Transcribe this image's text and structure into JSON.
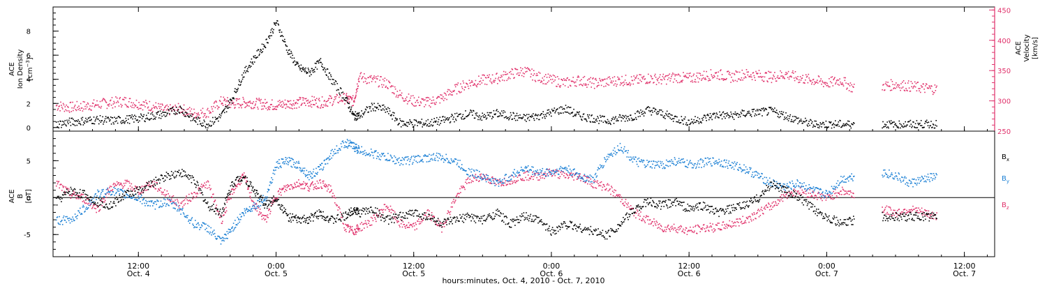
{
  "colors": {
    "axes": "#000000",
    "density": "#000000",
    "velocity": "#e0306a",
    "bx": "#000000",
    "by": "#1a7fd4",
    "bz": "#e0306a"
  },
  "footer_label": "hours:minutes, Oct.  4, 2010 - Oct.  7, 2010",
  "time_ticks": [
    {
      "t": 4.5,
      "time": "12:00",
      "date": "Oct. 4"
    },
    {
      "t": 5.0,
      "time": "0:00",
      "date": "Oct. 5"
    },
    {
      "t": 5.5,
      "time": "12:00",
      "date": "Oct. 5"
    },
    {
      "t": 6.0,
      "time": "0:00",
      "date": "Oct. 6"
    },
    {
      "t": 6.5,
      "time": "12:00",
      "date": "Oct. 6"
    },
    {
      "t": 7.0,
      "time": "0:00",
      "date": "Oct. 7"
    },
    {
      "t": 7.5,
      "time": "12:00",
      "date": "Oct. 7"
    }
  ],
  "chart_data": [
    {
      "type": "scatter",
      "panel": "top",
      "x_unit": "day of October 2010",
      "xlim": [
        4.19,
        7.61
      ],
      "left_axis": {
        "label_line1": "ACE",
        "label_line2": "Ion Density",
        "unit_text": "[cm",
        "unit_sup": "−3",
        "unit_end": "]",
        "ylim": [
          -0.3,
          10
        ],
        "ticks": [
          0,
          2,
          4,
          6,
          8
        ]
      },
      "right_axis": {
        "label_line1": "ACE",
        "label_line2": "Velocity",
        "unit_text": "[km/s]",
        "ylim": [
          250,
          455
        ],
        "ticks": [
          250,
          300,
          350,
          400,
          450
        ]
      },
      "series": [
        {
          "axis": "left",
          "x": [
            4.2,
            4.25,
            4.3,
            4.35,
            4.4,
            4.45,
            4.5,
            4.55,
            4.6,
            4.65,
            4.7,
            4.75,
            4.8,
            4.84,
            4.88,
            4.92,
            4.96,
            5.0,
            5.04,
            5.08,
            5.12,
            5.16,
            5.2,
            5.25,
            5.28,
            5.3,
            5.35,
            5.4,
            5.45,
            5.5,
            5.55,
            5.6,
            5.65,
            5.7,
            5.75,
            5.8,
            5.85,
            5.9,
            5.95,
            6.0,
            6.05,
            6.1,
            6.15,
            6.2,
            6.25,
            6.3,
            6.35,
            6.4,
            6.45,
            6.5,
            6.55,
            6.6,
            6.65,
            6.7,
            6.75,
            6.8,
            6.85,
            6.9,
            6.95,
            7.0,
            7.05,
            7.1,
            7.15,
            7.2,
            7.25,
            7.3,
            7.35,
            7.4
          ],
          "y": [
            0.3,
            0.5,
            0.6,
            0.7,
            0.6,
            0.7,
            0.8,
            1.0,
            1.2,
            1.6,
            0.7,
            0.3,
            1.0,
            2.5,
            4.5,
            5.8,
            7.0,
            8.8,
            6.5,
            5.0,
            4.6,
            5.5,
            4.0,
            2.5,
            1.0,
            1.0,
            1.8,
            1.5,
            0.4,
            0.4,
            0.4,
            0.6,
            0.9,
            1.2,
            0.9,
            1.2,
            1.0,
            0.8,
            1.0,
            1.3,
            1.6,
            1.0,
            0.8,
            0.6,
            0.8,
            1.0,
            1.5,
            1.2,
            0.8,
            0.5,
            0.8,
            1.1,
            1.0,
            1.2,
            1.3,
            1.4,
            1.0,
            0.6,
            0.3,
            0.3,
            0.3,
            0.3,
            null,
            0.3,
            0.3,
            0.3,
            0.3,
            0.3
          ]
        },
        {
          "axis": "right",
          "x": [
            4.2,
            4.25,
            4.3,
            4.35,
            4.4,
            4.45,
            4.5,
            4.55,
            4.6,
            4.65,
            4.7,
            4.75,
            4.8,
            4.84,
            4.88,
            4.92,
            4.96,
            5.0,
            5.04,
            5.08,
            5.12,
            5.16,
            5.2,
            5.25,
            5.28,
            5.3,
            5.35,
            5.4,
            5.45,
            5.5,
            5.55,
            5.6,
            5.65,
            5.7,
            5.75,
            5.8,
            5.85,
            5.9,
            5.95,
            6.0,
            6.05,
            6.1,
            6.15,
            6.2,
            6.25,
            6.3,
            6.35,
            6.4,
            6.45,
            6.5,
            6.55,
            6.6,
            6.65,
            6.7,
            6.75,
            6.8,
            6.85,
            6.9,
            6.95,
            7.0,
            7.05,
            7.1,
            7.15,
            7.2,
            7.25,
            7.3,
            7.35,
            7.4
          ],
          "y": [
            293,
            290,
            292,
            295,
            298,
            300,
            296,
            292,
            285,
            288,
            280,
            282,
            300,
            296,
            298,
            297,
            295,
            294,
            296,
            298,
            300,
            298,
            302,
            305,
            300,
            340,
            335,
            330,
            310,
            300,
            298,
            305,
            320,
            330,
            335,
            338,
            345,
            350,
            340,
            335,
            330,
            335,
            330,
            332,
            335,
            334,
            338,
            336,
            340,
            338,
            342,
            345,
            340,
            345,
            343,
            340,
            345,
            338,
            335,
            330,
            335,
            320,
            null,
            325,
            328,
            325,
            322,
            320
          ]
        }
      ]
    },
    {
      "type": "scatter",
      "panel": "bottom",
      "x_unit": "day of October 2010",
      "xlim": [
        4.19,
        7.61
      ],
      "left_axis": {
        "label_line1": "ACE",
        "label_line2": "B",
        "unit_text": "[nT]",
        "ylim": [
          -8,
          9
        ],
        "ticks": [
          -5,
          0,
          5
        ]
      },
      "legend": [
        "B",
        "B",
        "B"
      ],
      "legend_subscripts": [
        "x",
        "y",
        "z"
      ],
      "series": [
        {
          "name": "B",
          "subscript": "x",
          "x": [
            4.2,
            4.25,
            4.3,
            4.35,
            4.4,
            4.45,
            4.5,
            4.55,
            4.6,
            4.65,
            4.7,
            4.75,
            4.8,
            4.84,
            4.88,
            4.92,
            4.96,
            5.0,
            5.04,
            5.08,
            5.12,
            5.16,
            5.2,
            5.25,
            5.28,
            5.3,
            5.35,
            5.4,
            5.45,
            5.5,
            5.55,
            5.6,
            5.65,
            5.7,
            5.75,
            5.8,
            5.85,
            5.9,
            5.95,
            6.0,
            6.05,
            6.1,
            6.15,
            6.2,
            6.25,
            6.3,
            6.35,
            6.4,
            6.45,
            6.5,
            6.55,
            6.6,
            6.65,
            6.7,
            6.75,
            6.8,
            6.85,
            6.9,
            6.95,
            7.0,
            7.05,
            7.1,
            7.15,
            7.2,
            7.25,
            7.3,
            7.35,
            7.4
          ],
          "y": [
            -0.5,
            1.0,
            0.5,
            -0.5,
            -1.0,
            0.5,
            1.0,
            2.0,
            3.0,
            3.5,
            2.5,
            -1.0,
            -2.0,
            2.0,
            3.0,
            1.0,
            -1.0,
            0.0,
            -2.5,
            -3.0,
            -2.8,
            -2.0,
            -3.0,
            -2.5,
            -1.5,
            -2.0,
            -1.5,
            -3.0,
            -2.5,
            -2.0,
            -2.5,
            -3.5,
            -3.0,
            -2.5,
            -3.0,
            -2.0,
            -3.5,
            -2.5,
            -3.0,
            -4.5,
            -3.5,
            -4.0,
            -4.5,
            -5.0,
            -3.5,
            -1.5,
            -0.5,
            -1.0,
            -0.5,
            -1.5,
            -1.0,
            -2.0,
            -1.5,
            -1.0,
            0.0,
            2.0,
            1.0,
            0.0,
            -1.5,
            -2.5,
            -3.5,
            -3.0,
            null,
            -2.5,
            -2.5,
            -2.5,
            -2.5,
            -2.5
          ]
        },
        {
          "name": "B",
          "subscript": "y",
          "x": [
            4.2,
            4.25,
            4.3,
            4.35,
            4.4,
            4.45,
            4.5,
            4.55,
            4.6,
            4.65,
            4.7,
            4.75,
            4.8,
            4.84,
            4.88,
            4.92,
            4.96,
            5.0,
            5.04,
            5.08,
            5.12,
            5.16,
            5.2,
            5.25,
            5.28,
            5.3,
            5.35,
            5.4,
            5.45,
            5.5,
            5.55,
            5.6,
            5.65,
            5.7,
            5.75,
            5.8,
            5.85,
            5.9,
            5.95,
            6.0,
            6.05,
            6.1,
            6.15,
            6.2,
            6.25,
            6.3,
            6.35,
            6.4,
            6.45,
            6.5,
            6.55,
            6.6,
            6.65,
            6.7,
            6.75,
            6.8,
            6.85,
            6.9,
            6.95,
            7.0,
            7.05,
            7.1,
            7.15,
            7.2,
            7.25,
            7.3,
            7.35,
            7.4
          ],
          "y": [
            -3.0,
            -3.0,
            -1.5,
            0.5,
            1.0,
            0.5,
            0.0,
            -1.0,
            -0.5,
            -1.5,
            -3.5,
            -4.0,
            -6.0,
            -4.0,
            -2.0,
            -1.0,
            0.0,
            4.5,
            5.0,
            4.5,
            3.0,
            4.0,
            6.0,
            7.5,
            7.0,
            6.5,
            6.0,
            5.5,
            5.0,
            5.2,
            5.5,
            5.5,
            5.0,
            3.5,
            3.0,
            2.0,
            3.0,
            4.0,
            3.5,
            3.5,
            4.0,
            3.0,
            2.5,
            5.5,
            7.0,
            5.0,
            4.5,
            4.5,
            5.0,
            4.5,
            4.8,
            5.0,
            4.5,
            4.0,
            3.0,
            2.0,
            1.5,
            2.0,
            1.0,
            0.5,
            2.5,
            3.0,
            null,
            3.5,
            3.0,
            2.0,
            2.5,
            3.0
          ]
        },
        {
          "name": "B",
          "subscript": "z",
          "x": [
            4.2,
            4.25,
            4.3,
            4.35,
            4.4,
            4.45,
            4.5,
            4.55,
            4.6,
            4.65,
            4.7,
            4.75,
            4.8,
            4.84,
            4.88,
            4.92,
            4.96,
            5.0,
            5.04,
            5.08,
            5.12,
            5.16,
            5.2,
            5.25,
            5.28,
            5.3,
            5.35,
            5.4,
            5.45,
            5.5,
            5.55,
            5.6,
            5.65,
            5.7,
            5.75,
            5.8,
            5.85,
            5.9,
            5.95,
            6.0,
            6.05,
            6.1,
            6.15,
            6.2,
            6.25,
            6.3,
            6.35,
            6.4,
            6.45,
            6.5,
            6.55,
            6.6,
            6.65,
            6.7,
            6.75,
            6.8,
            6.85,
            6.9,
            6.95,
            7.0,
            7.05,
            7.1,
            7.15,
            7.2,
            7.25,
            7.3,
            7.35,
            7.4
          ],
          "y": [
            2.0,
            0.5,
            0.0,
            -1.5,
            1.5,
            2.0,
            1.0,
            2.0,
            0.5,
            -1.0,
            0.5,
            2.0,
            -3.0,
            1.0,
            3.0,
            -1.0,
            -3.0,
            0.5,
            1.5,
            2.0,
            1.5,
            2.0,
            1.0,
            -4.0,
            -4.5,
            -4.0,
            -3.0,
            -1.0,
            -3.5,
            -4.0,
            -2.0,
            -4.0,
            0.0,
            2.5,
            3.0,
            2.0,
            2.5,
            3.0,
            3.0,
            3.5,
            3.0,
            3.0,
            2.0,
            1.5,
            0.0,
            -2.0,
            -3.0,
            -4.0,
            -4.0,
            -4.5,
            -4.0,
            -4.0,
            -3.5,
            -3.0,
            -2.0,
            -1.0,
            0.5,
            1.0,
            0.5,
            0.0,
            1.0,
            0.5,
            null,
            -1.5,
            -2.0,
            -1.5,
            -2.0,
            -2.5
          ]
        }
      ]
    }
  ]
}
